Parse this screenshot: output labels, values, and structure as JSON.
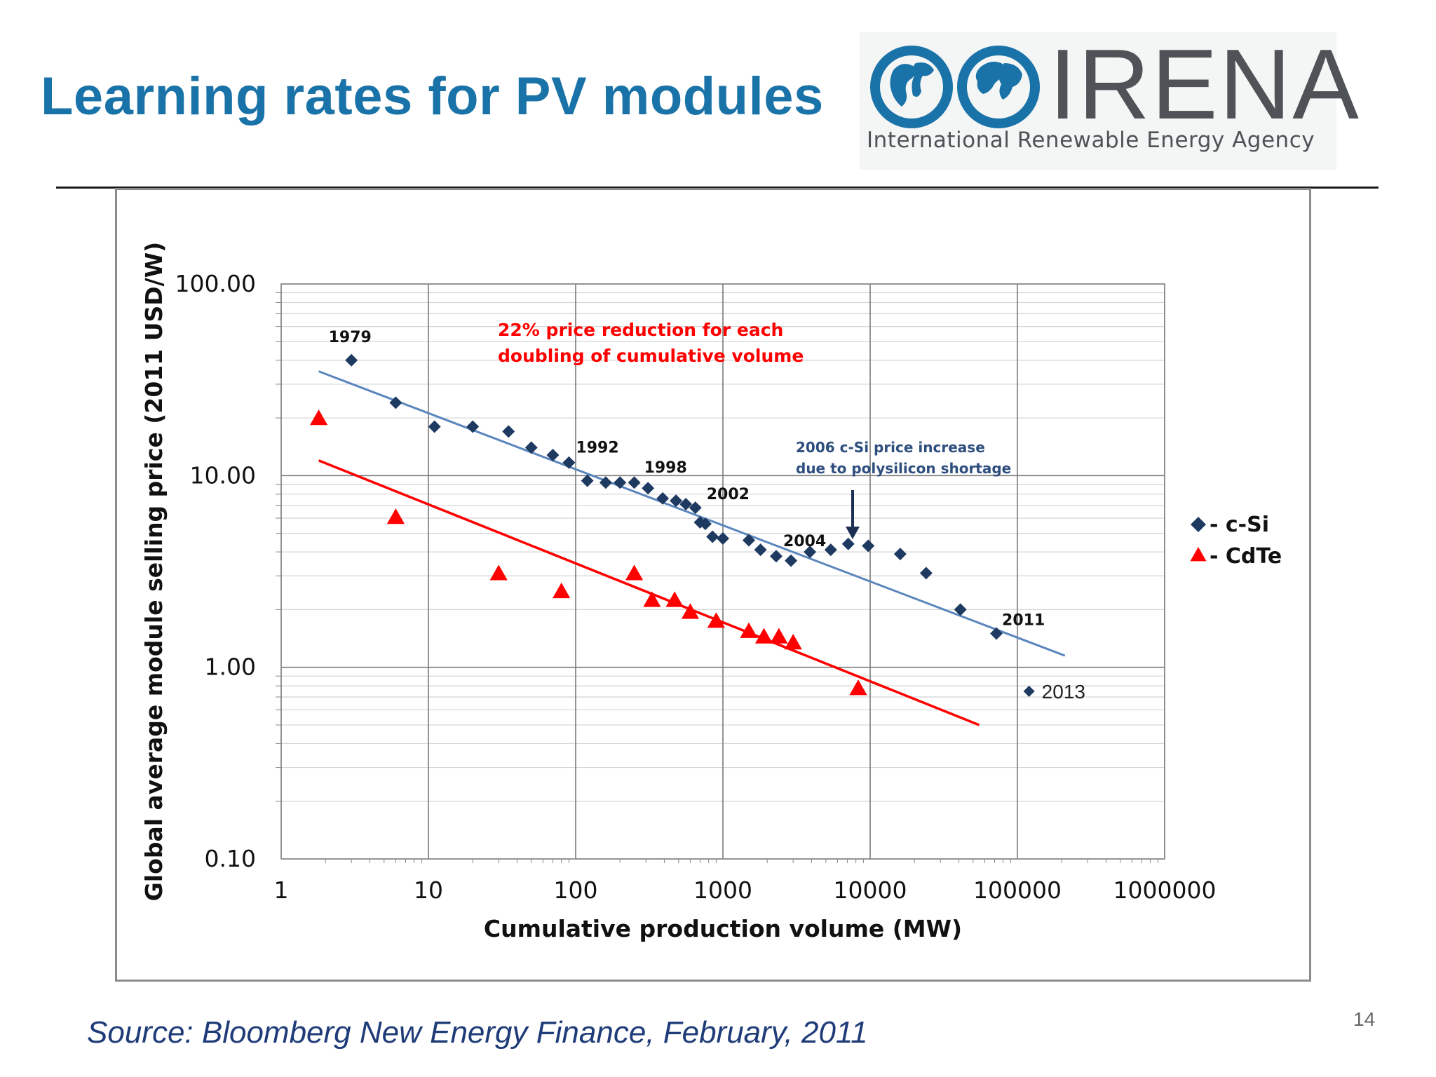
{
  "slide": {
    "title": "Learning rates for PV modules",
    "source": "Source: Bloomberg New Energy Finance, February, 2011",
    "page_number": "14"
  },
  "logo": {
    "name": "IRENA",
    "subtitle": "International Renewable Energy Agency",
    "color": "#1a73a8"
  },
  "colors": {
    "title": "#1a73a8",
    "csi": "#1f3a60",
    "csi_trend": "#5b86bd",
    "cdte": "#ff0000",
    "annotation_blue": "#2e4e7e"
  },
  "chart_data": {
    "type": "scatter",
    "xscale": "log",
    "yscale": "log",
    "xlim": [
      1,
      1000000
    ],
    "ylim": [
      0.1,
      100
    ],
    "xlabel": "Cumulative production volume (MW)",
    "ylabel": "Global average module selling price (2011 USD/W)",
    "x_ticks": [
      "1",
      "10",
      "100",
      "1000",
      "10000",
      "100000",
      "1000000"
    ],
    "y_ticks": [
      "0.10",
      "1.00",
      "10.00",
      "100.00"
    ],
    "grid": true,
    "legend_position": "right",
    "series": [
      {
        "name": "- c-Si",
        "marker": "diamond",
        "color": "#1f3a60",
        "points": [
          [
            3,
            40
          ],
          [
            6,
            24
          ],
          [
            11,
            18
          ],
          [
            20,
            18
          ],
          [
            35,
            17
          ],
          [
            50,
            14
          ],
          [
            70,
            12.8
          ],
          [
            90,
            11.7
          ],
          [
            120,
            9.4
          ],
          [
            160,
            9.2
          ],
          [
            200,
            9.2
          ],
          [
            250,
            9.2
          ],
          [
            310,
            8.6
          ],
          [
            390,
            7.6
          ],
          [
            480,
            7.4
          ],
          [
            560,
            7.1
          ],
          [
            650,
            6.8
          ],
          [
            700,
            5.7
          ],
          [
            760,
            5.6
          ],
          [
            850,
            4.8
          ],
          [
            1000,
            4.7
          ],
          [
            1500,
            4.6
          ],
          [
            1800,
            4.1
          ],
          [
            2300,
            3.8
          ],
          [
            2900,
            3.6
          ],
          [
            3900,
            4.0
          ],
          [
            5400,
            4.1
          ],
          [
            7100,
            4.4
          ],
          [
            9700,
            4.3
          ],
          [
            16000,
            3.9
          ],
          [
            24000,
            3.1
          ],
          [
            41000,
            2.0
          ],
          [
            72000,
            1.5
          ]
        ],
        "trendline": [
          [
            1.8,
            35
          ],
          [
            210000,
            1.15
          ]
        ]
      },
      {
        "name": "- CdTe",
        "marker": "triangle",
        "color": "#ff0000",
        "points": [
          [
            1.8,
            20
          ],
          [
            6,
            6.1
          ],
          [
            30,
            3.1
          ],
          [
            80,
            2.5
          ],
          [
            250,
            3.1
          ],
          [
            330,
            2.25
          ],
          [
            470,
            2.25
          ],
          [
            600,
            1.95
          ],
          [
            900,
            1.75
          ],
          [
            1500,
            1.55
          ],
          [
            1900,
            1.45
          ],
          [
            2400,
            1.45
          ],
          [
            3000,
            1.35
          ],
          [
            8300,
            0.78
          ]
        ],
        "trendline": [
          [
            1.8,
            12
          ],
          [
            55000,
            0.5
          ]
        ]
      },
      {
        "name": "2013",
        "marker": "diamond-small",
        "color": "#1f3a60",
        "points": [
          [
            120000,
            0.75
          ]
        ]
      }
    ],
    "year_labels": [
      {
        "text": "1979",
        "x": 3,
        "y": 40
      },
      {
        "text": "1992",
        "x": 90,
        "y": 11.7
      },
      {
        "text": "1998",
        "x": 250,
        "y": 9.2
      },
      {
        "text": "2002",
        "x": 650,
        "y": 6.8
      },
      {
        "text": "2004",
        "x": 2300,
        "y": 3.8
      },
      {
        "text": "2011",
        "x": 72000,
        "y": 1.5
      }
    ],
    "annotations": {
      "reduction": [
        "22% price reduction for each",
        "doubling of cumulative volume"
      ],
      "shortage": [
        "2006 c-Si price increase",
        "due to polysilicon shortage"
      ]
    }
  }
}
